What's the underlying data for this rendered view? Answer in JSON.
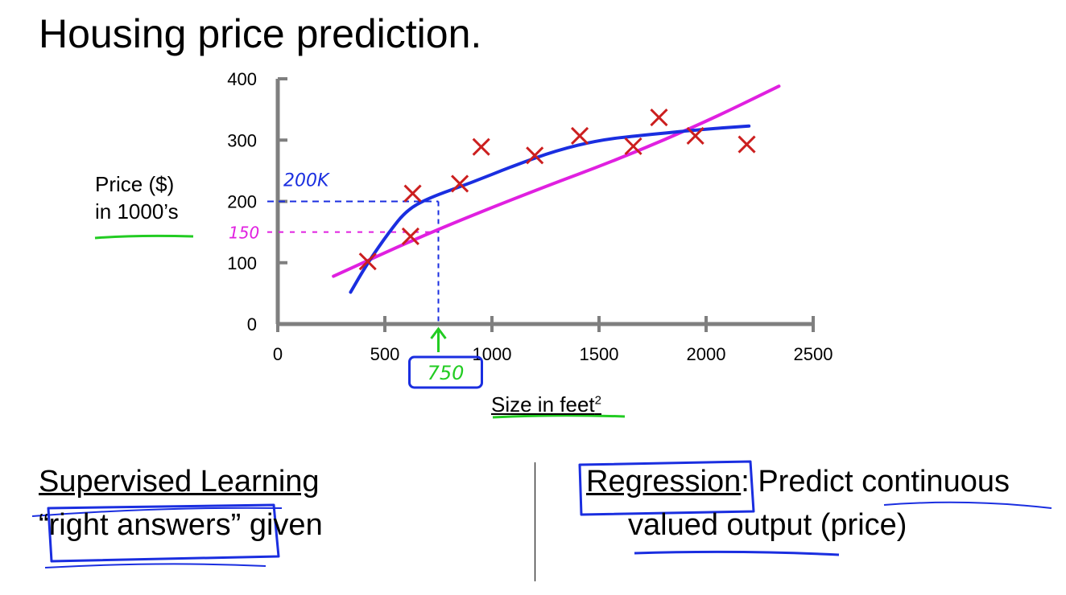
{
  "title": "Housing price prediction.",
  "chart_data": {
    "type": "scatter",
    "xlabel": "Size in feet",
    "xlabel_sup": "2",
    "ylabel": [
      "Price ($)",
      "in 1000’s"
    ],
    "xlim": [
      0,
      2500
    ],
    "ylim": [
      0,
      400
    ],
    "x_ticks": [
      0,
      500,
      1000,
      1500,
      2000,
      2500
    ],
    "y_ticks": [
      0,
      100,
      200,
      300,
      400
    ],
    "points": [
      {
        "x": 420,
        "y": 102
      },
      {
        "x": 620,
        "y": 143
      },
      {
        "x": 630,
        "y": 213
      },
      {
        "x": 850,
        "y": 229
      },
      {
        "x": 950,
        "y": 289
      },
      {
        "x": 1200,
        "y": 275
      },
      {
        "x": 1410,
        "y": 307
      },
      {
        "x": 1660,
        "y": 290
      },
      {
        "x": 1780,
        "y": 337
      },
      {
        "x": 1950,
        "y": 307
      },
      {
        "x": 2190,
        "y": 293
      }
    ],
    "lines": [
      {
        "color": "#e020e0",
        "points": [
          [
            260,
            78
          ],
          [
            700,
            148
          ],
          [
            1200,
            218
          ],
          [
            1600,
            270
          ],
          [
            2000,
            330
          ],
          [
            2340,
            388
          ]
        ]
      },
      {
        "color": "#1a2ee0",
        "points": [
          [
            340,
            52
          ],
          [
            420,
            100
          ],
          [
            520,
            150
          ],
          [
            600,
            185
          ],
          [
            700,
            205
          ],
          [
            900,
            230
          ],
          [
            1100,
            258
          ],
          [
            1300,
            283
          ],
          [
            1500,
            300
          ],
          [
            1700,
            308
          ],
          [
            2000,
            318
          ],
          [
            2200,
            323
          ]
        ]
      }
    ],
    "annotations": {
      "x_query": "750",
      "y_curve": "200K",
      "y_line": "150",
      "colors": {
        "points": "#cc1f1f",
        "curve": "#1a2ee0",
        "line": "#e020e0",
        "arrow": "#22cc22"
      }
    }
  },
  "left_panel": {
    "heading": "Supervised Learning",
    "quote_text": "“right answers”",
    "given": " given"
  },
  "right_panel": {
    "term": "Regression",
    "colon": ":",
    "line1_rest": " Predict continuous",
    "line2_a": "valued output",
    "line2_b": " (price)"
  }
}
